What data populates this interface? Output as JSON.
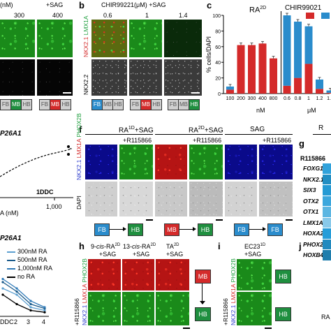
{
  "panels": {
    "a": {
      "header_prefix": "(nM)",
      "header_condition": "+SAG",
      "concentrations": [
        "300",
        "400"
      ],
      "legend_boxes": [
        [
          "FB",
          "MB",
          "HB"
        ],
        [
          "FB",
          "MB",
          "HB"
        ]
      ]
    },
    "b": {
      "label": "b",
      "header": "CHIR99221(μM) +SAG",
      "concentrations": [
        "0.6",
        "1",
        "1.4"
      ],
      "markers_top": [
        "NKX2.1",
        "LMX1A"
      ],
      "marker_bottom": "NKX2.2",
      "legend": [
        "FB",
        "MB",
        "HB"
      ]
    },
    "c": {
      "label": "c",
      "group1_label": "RA",
      "group1_sup": "2D",
      "group2_label": "CHIR99021",
      "ylabel": "% cells/DAPI",
      "xunit1": "nM",
      "xunit2": "μM"
    },
    "cyp": {
      "gene": "P26A1",
      "annotation": "1DDC",
      "xtick": "1,000",
      "xlabel_partial": "A (nM)"
    },
    "f": {
      "label": "f",
      "conditions": [
        {
          "base": "RA",
          "sup": "1D",
          "extra": "+SAG"
        },
        {
          "base": "RA",
          "sup": "2D",
          "extra": "+SAG"
        },
        {
          "base": "SAG",
          "sup": "",
          "extra": ""
        }
      ],
      "treatment": "+R115866",
      "markers": [
        "NKX2.1",
        "LMX1A",
        "PHOX2B"
      ],
      "dapi": "DAPI",
      "flows": [
        [
          "FB",
          "HB"
        ],
        [
          "MB",
          "HB"
        ],
        [
          "FB",
          "FB"
        ]
      ]
    },
    "g": {
      "label": "g",
      "row_header": "R115866",
      "col_header_partial": "R",
      "genes": [
        "FOXG1",
        "NKX2.1",
        "SIX3",
        "OTX2",
        "OTX1",
        "LMX1A",
        "HOXA2",
        "PHOX2B",
        "HOXB4"
      ],
      "heat": [
        0.55,
        0.7,
        0.62,
        0.5,
        0.35,
        0.15,
        0.6,
        0.72,
        0.8
      ]
    },
    "legend_ra": {
      "gene": "P26A1",
      "items": [
        "300nM RA",
        "500nM RA",
        "1,000nM RA",
        "no RA"
      ],
      "colors": [
        "#5c9fd0",
        "#1a5a8a",
        "#2f7ab8",
        "#000000"
      ],
      "x_ticks": [
        "DDC",
        "2",
        "3",
        "4"
      ]
    },
    "h": {
      "label": "h",
      "conditions": [
        {
          "prefix": "9-",
          "ital": "cis",
          "base": "-RA",
          "sup": "2D",
          "extra": "+SAG"
        },
        {
          "prefix": "13-",
          "ital": "cis",
          "base": "-RA",
          "sup": "2D",
          "extra": "+SAG"
        },
        {
          "prefix": "",
          "ital": "",
          "base": "TA",
          "sup": "2D",
          "extra": "+SAG"
        }
      ],
      "markers": [
        "NKX2.1",
        "LMX1A",
        "PHOX2B"
      ],
      "treatment": "+R115866",
      "flow": [
        "MB",
        "HB"
      ]
    },
    "i": {
      "label": "i",
      "condition": {
        "base": "EC23",
        "sup": "1D",
        "extra": "+SAG"
      },
      "markers": [
        "NKX2.1",
        "LMX1A",
        "PHOX2B"
      ],
      "treatment": "+R115866",
      "flow": [
        "HB",
        "HB"
      ]
    },
    "j": {
      "label": "j",
      "partial": "RA"
    }
  },
  "chart_data": {
    "type": "bar",
    "title": "",
    "groups": [
      {
        "label": "RA2D",
        "unit": "nM",
        "categories": [
          "100",
          "200",
          "300",
          "400",
          "800"
        ]
      },
      {
        "label": "CHIR99021",
        "unit": "μM",
        "categories": [
          "0.6",
          "0.8",
          "1",
          "1.2",
          "1.4"
        ]
      }
    ],
    "series": [
      {
        "values": [
          5,
          62,
          62,
          64,
          45,
          10,
          20,
          38,
          6,
          1
        ],
        "color": "#d42a2a"
      },
      {
        "values": [
          4,
          0,
          0,
          0,
          0,
          90,
          72,
          48,
          12,
          3
        ],
        "color": "#2a8ccc"
      }
    ],
    "ylabel": "% cells/DAPI",
    "ylim": [
      0,
      100
    ]
  },
  "chart_data_curves": {
    "type": "line",
    "series": [
      {
        "name": "300nM RA",
        "x": [
          0,
          1,
          2,
          3
        ],
        "y": [
          0.4,
          0.3,
          0.1,
          0.05
        ]
      },
      {
        "name": "500nM RA",
        "x": [
          0,
          1,
          2,
          3
        ],
        "y": [
          0.5,
          0.35,
          0.15,
          0.08
        ]
      },
      {
        "name": "1,000nM RA",
        "x": [
          0,
          1,
          2,
          3
        ],
        "y": [
          0.55,
          0.4,
          0.2,
          0.1
        ]
      },
      {
        "name": "no RA",
        "x": [
          0,
          1,
          2,
          3
        ],
        "y": [
          0.3,
          0.15,
          0.05,
          0.02
        ]
      }
    ]
  }
}
